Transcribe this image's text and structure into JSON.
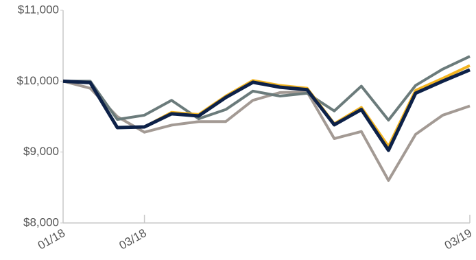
{
  "chart_data": {
    "type": "line",
    "categories": [
      "01/18",
      null,
      null,
      "03/18",
      null,
      null,
      null,
      null,
      null,
      null,
      null,
      null,
      null,
      null,
      null,
      "03/19"
    ],
    "series": [
      {
        "color": "#a39a94",
        "values": [
          10000,
          9900,
          9500,
          9280,
          9380,
          9430,
          9430,
          9730,
          9840,
          9850,
          9190,
          9290,
          8600,
          9250,
          9520,
          9650
        ]
      },
      {
        "color": "#6b7b7b",
        "values": [
          10000,
          10000,
          9460,
          9520,
          9730,
          9470,
          9600,
          9860,
          9790,
          9830,
          9580,
          9930,
          9450,
          9940,
          10170,
          10350
        ]
      },
      {
        "color": "#f2b420",
        "values": [
          10000,
          9980,
          9345,
          9355,
          9560,
          9530,
          9790,
          10010,
          9940,
          9900,
          9400,
          9630,
          9080,
          9870,
          10040,
          10220
        ]
      },
      {
        "color": "#0d2148",
        "values": [
          10000,
          9980,
          9345,
          9355,
          9540,
          9510,
          9770,
          9985,
          9915,
          9880,
          9385,
          9600,
          9025,
          9830,
          10000,
          10160
        ]
      }
    ],
    "ylim": [
      8000,
      11000
    ],
    "yticks": [
      {
        "value": 8000,
        "label": "$8,000"
      },
      {
        "value": 9000,
        "label": "$9,000"
      },
      {
        "value": 10000,
        "label": "$10,000"
      },
      {
        "value": 11000,
        "label": "$11,000"
      }
    ],
    "grid": false
  }
}
